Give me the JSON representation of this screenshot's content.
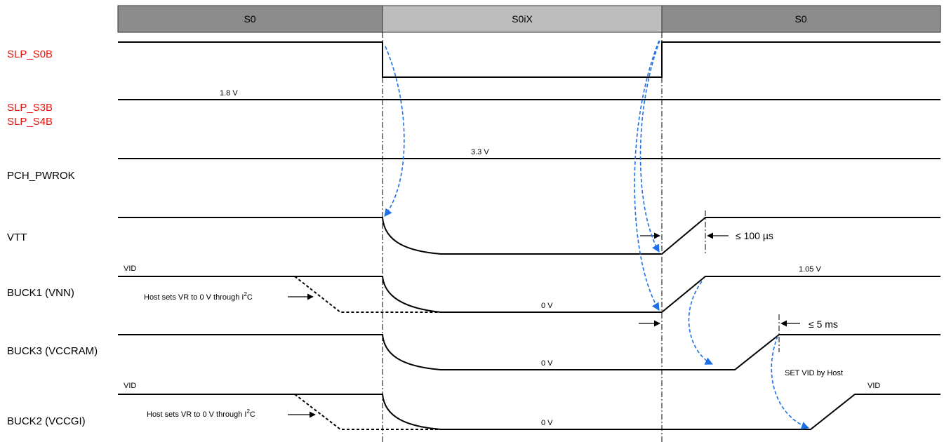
{
  "states": [
    "S0",
    "S0iX",
    "S0"
  ],
  "signals": {
    "slp_s0b": "SLP_S0B",
    "slp_s3b": "SLP_S3B",
    "slp_s4b": "SLP_S4B",
    "pch_pwrok": "PCH_PWROK",
    "vtt": "VTT",
    "buck1": "BUCK1 (VNN)",
    "buck3": "BUCK3 (VCCRAM)",
    "buck2": "BUCK2 (VCCGI)"
  },
  "annotations": {
    "v_1_8": "1.8 V",
    "v_3_3": "3.3 V",
    "vtt_timing": "≤ 100 µs",
    "buck1_vid": "VID",
    "buck1_host_prefix": "Host sets VR to 0 V through I",
    "buck1_host_sup": "2",
    "buck1_host_suffix": "C",
    "buck1_0v": "0 V",
    "buck1_1_05": "1.05 V",
    "buck3_timing": "≤ 5 ms",
    "buck3_0v": "0 V",
    "set_vid": "SET VID by Host",
    "buck2_vid_left": "VID",
    "buck2_host_prefix": "Host sets VR to 0 V through I",
    "buck2_host_sup": "2",
    "buck2_host_suffix": "C",
    "buck2_0v": "0 V",
    "buck2_vid_right": "VID"
  },
  "colors": {
    "state_s0_fill": "#8c8c8c",
    "state_s0ix_fill": "#bdbdbd",
    "label_red": "#e8150f",
    "arrow_blue": "#1f6fe5"
  }
}
